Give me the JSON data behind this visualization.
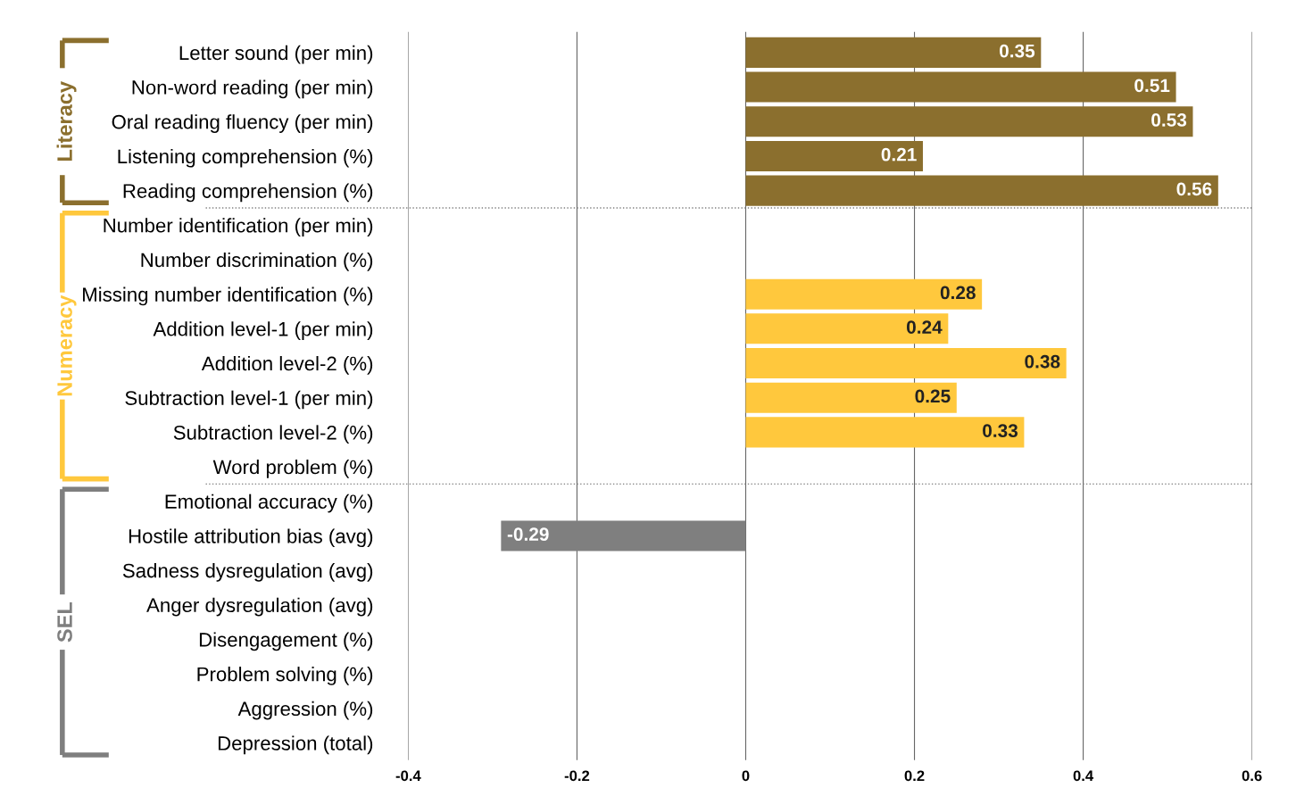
{
  "chart_data": {
    "type": "bar",
    "orientation": "horizontal",
    "categories": [
      "Letter sound (per min)",
      "Non-word reading (per min)",
      "Oral reading fluency (per min)",
      "Listening comprehension (%)",
      "Reading comprehension (%)",
      "Number identification (per min)",
      "Number discrimination (%)",
      "Missing number identification (%)",
      "Addition level-1 (per min)",
      "Addition level-2 (%)",
      "Subtraction level-1 (per min)",
      "Subtraction level-2 (%)",
      "Word problem (%)",
      "Emotional accuracy (%)",
      "Hostile attribution bias (avg)",
      "Sadness dysregulation (avg)",
      "Anger dysregulation (avg)",
      "Disengagement (%)",
      "Problem solving (%)",
      "Aggression (%)",
      "Depression (total)"
    ],
    "series": [
      {
        "name": "Literacy",
        "color": "#8b6f2e",
        "values": [
          0.35,
          0.51,
          0.53,
          0.21,
          0.56,
          null,
          null,
          null,
          null,
          null,
          null,
          null,
          null,
          null,
          null,
          null,
          null,
          null,
          null,
          null,
          null
        ]
      },
      {
        "name": "Numeracy",
        "color": "#ffc83d",
        "values": [
          null,
          null,
          null,
          null,
          null,
          null,
          null,
          0.28,
          0.24,
          0.38,
          0.25,
          0.33,
          null,
          null,
          null,
          null,
          null,
          null,
          null,
          null,
          null
        ]
      },
      {
        "name": "SEL",
        "color": "#7f7f7f",
        "values": [
          null,
          null,
          null,
          null,
          null,
          null,
          null,
          null,
          null,
          null,
          null,
          null,
          null,
          null,
          -0.29,
          null,
          null,
          null,
          null,
          null,
          null
        ]
      }
    ],
    "xlim": [
      -0.4,
      0.6
    ],
    "xticks": [
      -0.4,
      -0.2,
      0,
      0.2,
      0.4,
      0.6
    ],
    "ref_lines": [
      {
        "axis": "y",
        "value": "Reading comprehension (%)",
        "line_style": "dotted",
        "color": "#808080"
      },
      {
        "axis": "y",
        "value": "Word problem (%)",
        "line_style": "dotted",
        "color": "#808080"
      }
    ],
    "grid": "x",
    "data_labels": true,
    "legend": "left"
  }
}
